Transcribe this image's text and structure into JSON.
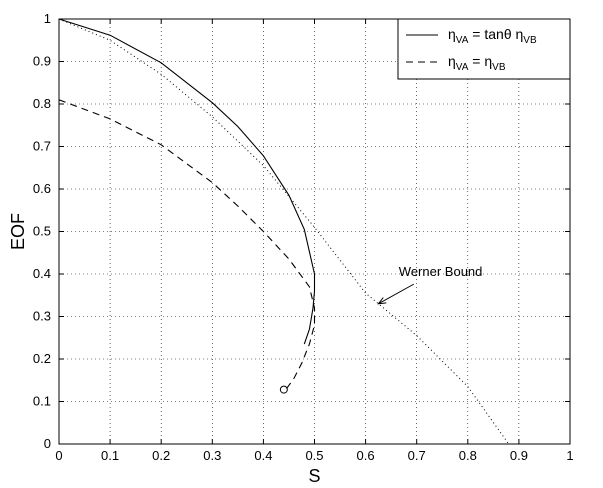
{
  "chart_data": {
    "type": "line",
    "xlabel": "S",
    "ylabel": "EOF",
    "xlim": [
      0,
      1
    ],
    "ylim": [
      0,
      1
    ],
    "xticks": [
      "0",
      "0.1",
      "0.2",
      "0.3",
      "0.4",
      "0.5",
      "0.6",
      "0.7",
      "0.8",
      "0.9",
      "1"
    ],
    "yticks": [
      "0",
      "0.1",
      "0.2",
      "0.3",
      "0.4",
      "0.5",
      "0.6",
      "0.7",
      "0.8",
      "0.9",
      "1"
    ],
    "grid": true,
    "legend_position": "top-right",
    "series": [
      {
        "legend": {
          "a": "η",
          "a_sub": "VA",
          "b": " = tanθ η",
          "b_sub": "VB"
        },
        "style": "solid",
        "color": "#000000",
        "points": [
          [
            0.0,
            1.0
          ],
          [
            0.1,
            0.962
          ],
          [
            0.2,
            0.897
          ],
          [
            0.3,
            0.803
          ],
          [
            0.35,
            0.747
          ],
          [
            0.4,
            0.678
          ],
          [
            0.45,
            0.585
          ],
          [
            0.48,
            0.505
          ],
          [
            0.5,
            0.4
          ],
          [
            0.5,
            0.36
          ],
          [
            0.497,
            0.32
          ],
          [
            0.49,
            0.27
          ],
          [
            0.48,
            0.235
          ]
        ]
      },
      {
        "legend": {
          "a": "η",
          "a_sub": "VA",
          "b": " = η",
          "b_sub": "VB"
        },
        "style": "dashed",
        "color": "#000000",
        "points": [
          [
            0.0,
            0.81
          ],
          [
            0.1,
            0.765
          ],
          [
            0.2,
            0.704
          ],
          [
            0.3,
            0.615
          ],
          [
            0.35,
            0.56
          ],
          [
            0.4,
            0.5
          ],
          [
            0.45,
            0.435
          ],
          [
            0.49,
            0.37
          ],
          [
            0.5,
            0.32
          ],
          [
            0.5,
            0.28
          ],
          [
            0.49,
            0.235
          ],
          [
            0.475,
            0.19
          ],
          [
            0.46,
            0.155
          ],
          [
            0.445,
            0.13
          ]
        ],
        "end_marker": [
          0.44,
          0.128
        ]
      },
      {
        "style": "dotted",
        "color": "#000000",
        "points": [
          [
            0.0,
            1.0
          ],
          [
            0.1,
            0.95
          ],
          [
            0.2,
            0.87
          ],
          [
            0.3,
            0.77
          ],
          [
            0.4,
            0.655
          ],
          [
            0.5,
            0.51
          ],
          [
            0.6,
            0.355
          ],
          [
            0.7,
            0.255
          ],
          [
            0.8,
            0.135
          ],
          [
            0.88,
            0.0
          ]
        ]
      }
    ],
    "annotations": [
      {
        "text": "Werner Bound",
        "arrow_to": [
          0.625,
          0.33
        ],
        "text_at": [
          0.71,
          0.395
        ]
      }
    ]
  }
}
